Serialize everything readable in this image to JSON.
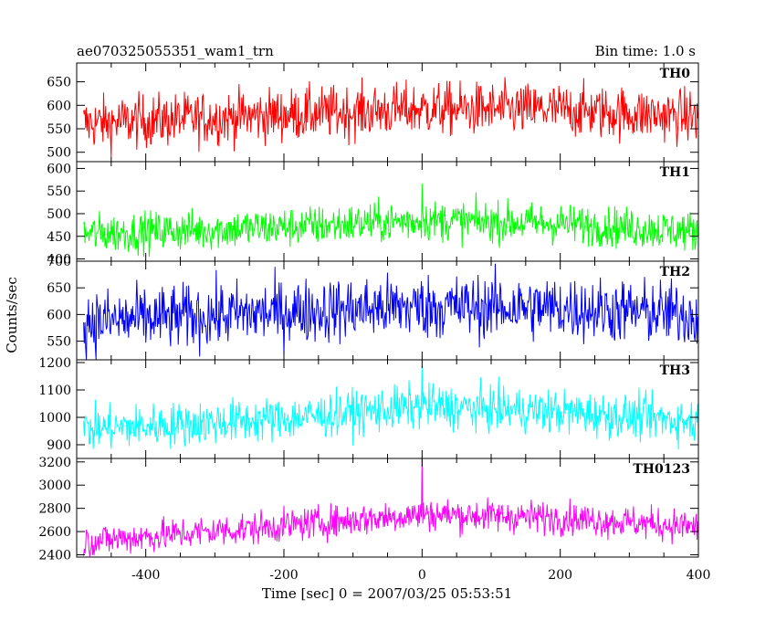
{
  "header": {
    "title": "ae070325055351_wam1_trn",
    "bin_time": "Bin time: 1.0 s"
  },
  "ylabel": "Counts/sec",
  "xlabel": "Time [sec] 0 = 2007/03/25 05:53:51",
  "chart_data": {
    "type": "line",
    "x_range": [
      -500,
      400
    ],
    "x_ticks": [
      -400,
      -200,
      0,
      200,
      400
    ],
    "panels": [
      {
        "name": "TH0",
        "color": "#ff0000",
        "ylim": [
          480,
          690
        ],
        "y_ticks": [
          500,
          550,
          600,
          650
        ],
        "trend": [
          [
            -500,
            560
          ],
          [
            -200,
            580
          ],
          [
            0,
            592
          ],
          [
            200,
            590
          ],
          [
            400,
            575
          ]
        ],
        "noise": 28,
        "spike": 0
      },
      {
        "name": "TH1",
        "color": "#00ff00",
        "ylim": [
          395,
          615
        ],
        "y_ticks": [
          400,
          450,
          500,
          550,
          600
        ],
        "trend": [
          [
            -500,
            455
          ],
          [
            -200,
            470
          ],
          [
            0,
            485
          ],
          [
            200,
            478
          ],
          [
            400,
            460
          ]
        ],
        "noise": 22,
        "spike": 120
      },
      {
        "name": "TH2",
        "color": "#0000ff",
        "ylim": [
          515,
          700
        ],
        "y_ticks": [
          550,
          600,
          650,
          700
        ],
        "trend": [
          [
            -500,
            585
          ],
          [
            -200,
            605
          ],
          [
            0,
            615
          ],
          [
            200,
            612
          ],
          [
            400,
            600
          ]
        ],
        "noise": 30,
        "spike": 0
      },
      {
        "name": "TH3",
        "color": "#00ffff",
        "ylim": [
          850,
          1210
        ],
        "y_ticks": [
          900,
          1000,
          1100,
          1200
        ],
        "trend": [
          [
            -500,
            955
          ],
          [
            -200,
            995
          ],
          [
            0,
            1040
          ],
          [
            200,
            1020
          ],
          [
            400,
            985
          ]
        ],
        "noise": 40,
        "spike": 150
      },
      {
        "name": "TH0123",
        "color": "#ff00ff",
        "ylim": [
          2380,
          3230
        ],
        "y_ticks": [
          2400,
          2600,
          2800,
          3000,
          3200
        ],
        "trend": [
          [
            -500,
            2510
          ],
          [
            -200,
            2650
          ],
          [
            0,
            2750
          ],
          [
            200,
            2720
          ],
          [
            400,
            2640
          ]
        ],
        "noise": 70,
        "spike": 450
      }
    ]
  }
}
